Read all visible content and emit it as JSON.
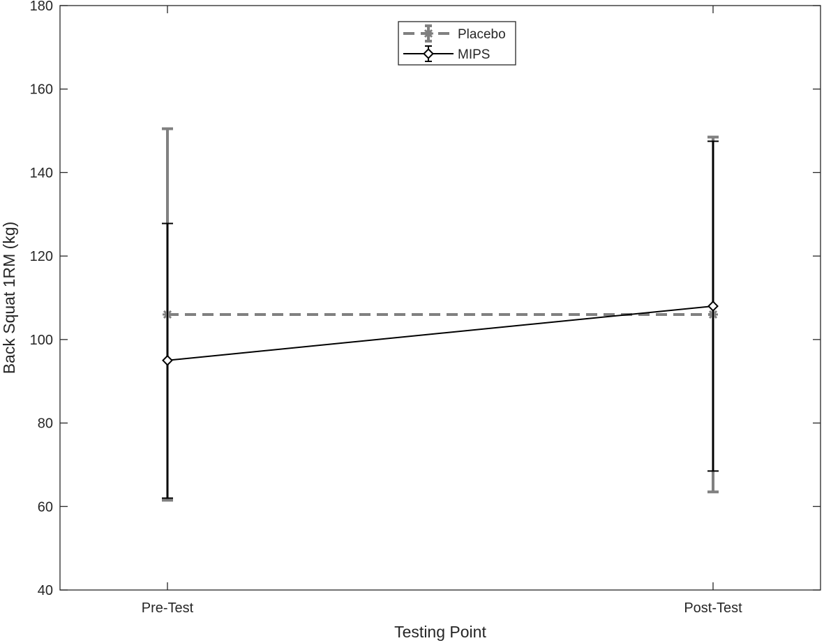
{
  "chart_data": {
    "type": "line",
    "title": "",
    "xlabel": "Testing Point",
    "ylabel": "Back Squat 1RM (kg)",
    "categories": [
      "Pre-Test",
      "Post-Test"
    ],
    "ylim": [
      40,
      180
    ],
    "yticks": [
      40,
      60,
      80,
      100,
      120,
      140,
      160,
      180
    ],
    "grid": false,
    "legend_position": "top-center",
    "series": [
      {
        "name": "Placebo",
        "values": [
          106,
          106
        ],
        "error_low": [
          61.5,
          63.5
        ],
        "error_high": [
          150.5,
          148.5
        ],
        "color": "#808080",
        "line_style": "dashed",
        "marker": "asterisk"
      },
      {
        "name": "MIPS",
        "values": [
          95,
          108
        ],
        "error_low": [
          62,
          68.5
        ],
        "error_high": [
          127.8,
          147.5
        ],
        "color": "#000000",
        "line_style": "solid",
        "marker": "diamond"
      }
    ]
  }
}
